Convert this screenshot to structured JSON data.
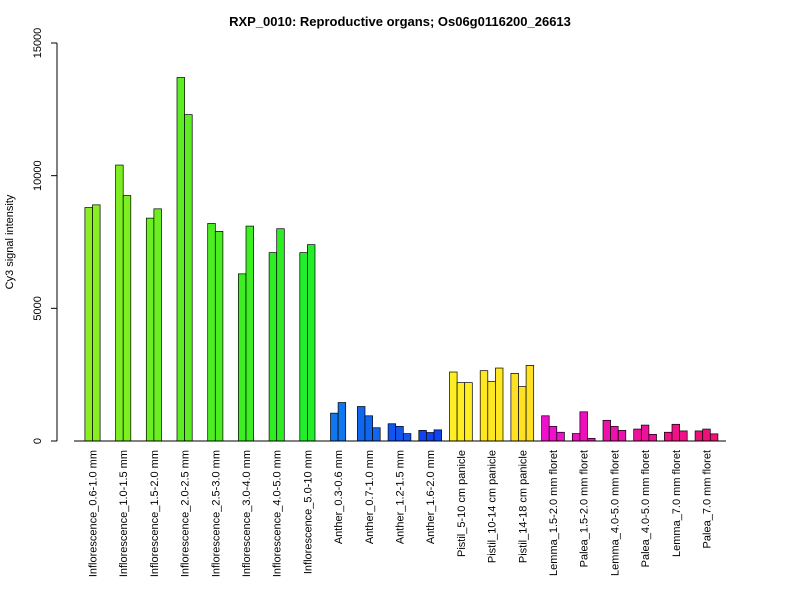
{
  "chart_data": {
    "type": "bar",
    "title": "RXP_0010: Reproductive organs; Os06g0116200_26613",
    "xlabel": "",
    "ylabel": "Cy3 signal intensity",
    "ylim": [
      0,
      15000
    ],
    "yticks": [
      0,
      5000,
      10000,
      15000
    ],
    "grid": false,
    "groups": [
      {
        "label": "Inflorescence_0.6-1.0 mm",
        "color": "#88ee22",
        "values": [
          8800,
          8900
        ]
      },
      {
        "label": "Inflorescence_1.0-1.5 mm",
        "color": "#7cee22",
        "values": [
          10400,
          9250
        ]
      },
      {
        "label": "Inflorescence_1.5-2.0 mm",
        "color": "#6cee22",
        "values": [
          8400,
          8750
        ]
      },
      {
        "label": "Inflorescence_2.0-2.5 mm",
        "color": "#5cee22",
        "values": [
          13700,
          12300
        ]
      },
      {
        "label": "Inflorescence_2.5-3.0 mm",
        "color": "#4cee22",
        "values": [
          8200,
          7900
        ]
      },
      {
        "label": "Inflorescence_3.0-4.0 mm",
        "color": "#3cee22",
        "values": [
          6300,
          8100
        ]
      },
      {
        "label": "Inflorescence_4.0-5.0 mm",
        "color": "#2cee22",
        "values": [
          7100,
          8000
        ]
      },
      {
        "label": "Inflorescence_5.0-10 mm",
        "color": "#22ee2c",
        "values": [
          7100,
          7400
        ]
      },
      {
        "label": "Anther_0.3-0.6 mm",
        "color": "#1177ee",
        "values": [
          1050,
          1450
        ]
      },
      {
        "label": "Anther_0.7-1.0 mm",
        "color": "#1166ee",
        "values": [
          1300,
          950,
          500
        ]
      },
      {
        "label": "Anther_1.2-1.5 mm",
        "color": "#1155ee",
        "values": [
          650,
          550,
          280
        ]
      },
      {
        "label": "Anther_1.6-2.0 mm",
        "color": "#1144ee",
        "values": [
          400,
          320,
          420
        ]
      },
      {
        "label": "Pistil_5-10 cm panicle",
        "color": "#ffee22",
        "values": [
          2600,
          2200,
          2200
        ]
      },
      {
        "label": "Pistil_10-14 cm panicle",
        "color": "#ffe822",
        "values": [
          2650,
          2250,
          2750
        ]
      },
      {
        "label": "Pistil_14-18 cm panicle",
        "color": "#ffe022",
        "values": [
          2550,
          2050,
          2850
        ]
      },
      {
        "label": "Lemma_1.5-2.0 mm floret",
        "color": "#ee11cc",
        "values": [
          950,
          550,
          330
        ]
      },
      {
        "label": "Palea_1.5-2.0 mm floret",
        "color": "#ee11bb",
        "values": [
          280,
          1100,
          100
        ]
      },
      {
        "label": "Lemma_4.0-5.0 mm floret",
        "color": "#ee11aa",
        "values": [
          780,
          550,
          400
        ]
      },
      {
        "label": "Palea_4.0-5.0 mm floret",
        "color": "#ee1199",
        "values": [
          450,
          600,
          250
        ]
      },
      {
        "label": "Lemma_7.0 mm floret",
        "color": "#ee1188",
        "values": [
          330,
          630,
          380
        ]
      },
      {
        "label": "Palea_7.0 mm floret",
        "color": "#ee1177",
        "values": [
          380,
          450,
          270
        ]
      }
    ]
  }
}
